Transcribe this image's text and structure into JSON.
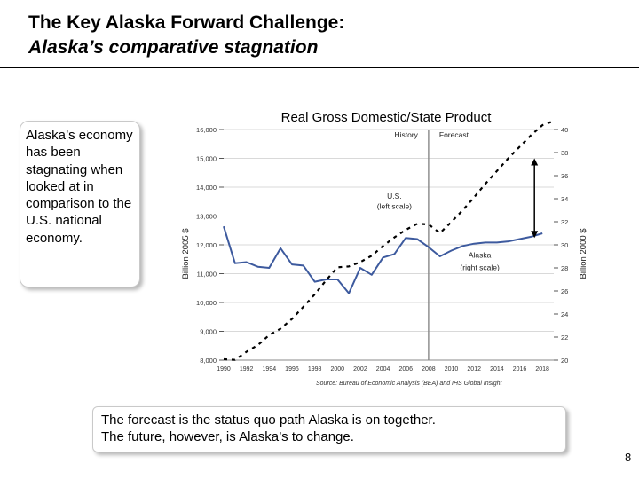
{
  "slide": {
    "title_line1": "The Key Alaska Forward Challenge:",
    "title_line2": "Alaska’s comparative stagnation",
    "callout": "Alaska’s economy has been stagnating when looked at in comparison to the U.S. national economy.",
    "bottom_note_line1": "The forecast is the status quo path Alaska is on together.",
    "bottom_note_line2": "The future, however, is Alaska’s to change.",
    "page_number": "8"
  },
  "chart_data": {
    "type": "line",
    "title": "Real Gross Domestic/State Product",
    "left_axis_label": "Billion 2005 $",
    "right_axis_label": "Billion 2000 $",
    "left_ylim": [
      8000,
      16000
    ],
    "left_ticks": [
      "8,000",
      "9,000",
      "10,000",
      "11,000",
      "12,000",
      "13,000",
      "14,000",
      "15,000",
      "16,000"
    ],
    "right_ylim": [
      20,
      40
    ],
    "right_ticks": [
      "20",
      "22",
      "24",
      "26",
      "28",
      "30",
      "32",
      "34",
      "36",
      "38",
      "40"
    ],
    "x_ticks": [
      "1990",
      "1992",
      "1994",
      "1996",
      "1998",
      "2000",
      "2002",
      "2004",
      "2006",
      "2008",
      "2010",
      "2012",
      "2014",
      "2016",
      "2018"
    ],
    "xlim": [
      1990,
      2019
    ],
    "divider_year": 2008,
    "history_label": "History",
    "forecast_label": "Forecast",
    "source": "Source: Bureau of Economic Analysis (BEA) and IHS Global Insight",
    "colors": {
      "alaska": "#3d5a9e",
      "us": "#000000",
      "divider": "#888888",
      "grid": "#d9d9d9"
    },
    "series": [
      {
        "name": "U.S. (left scale)",
        "axis": "left",
        "style": "dashed",
        "x": [
          1990,
          1991,
          1992,
          1993,
          1994,
          1995,
          1996,
          1997,
          1998,
          1999,
          2000,
          2001,
          2002,
          2003,
          2004,
          2005,
          2006,
          2007,
          2008,
          2009,
          2010,
          2011,
          2012,
          2013,
          2014,
          2015,
          2016,
          2017,
          2018,
          2019
        ],
        "values": [
          8030,
          8010,
          8290,
          8520,
          8870,
          9090,
          9430,
          9850,
          10280,
          10770,
          11220,
          11250,
          11400,
          11620,
          11960,
          12260,
          12520,
          12730,
          12710,
          12410,
          12790,
          13200,
          13650,
          14120,
          14560,
          15000,
          15400,
          15800,
          16150,
          16300
        ]
      },
      {
        "name": "Alaska (right scale)",
        "axis": "right",
        "style": "solid",
        "x": [
          1990,
          1991,
          1992,
          1993,
          1994,
          1995,
          1996,
          1997,
          1998,
          1999,
          2000,
          2001,
          2002,
          2003,
          2004,
          2005,
          2006,
          2007,
          2008,
          2009,
          2010,
          2011,
          2012,
          2013,
          2014,
          2015,
          2016,
          2017,
          2018
        ],
        "values": [
          31.6,
          28.4,
          28.5,
          28.1,
          28.0,
          29.7,
          28.3,
          28.2,
          26.8,
          27.0,
          27.0,
          25.8,
          28.0,
          27.4,
          28.9,
          29.2,
          30.6,
          30.5,
          29.8,
          29.0,
          29.5,
          29.9,
          30.1,
          30.2,
          30.2,
          30.3,
          30.5,
          30.7,
          31.0
        ]
      }
    ],
    "annotations": {
      "us_label": [
        "U.S.",
        "(left scale)"
      ],
      "alaska_label": [
        "Alaska",
        "(right scale)"
      ]
    }
  }
}
